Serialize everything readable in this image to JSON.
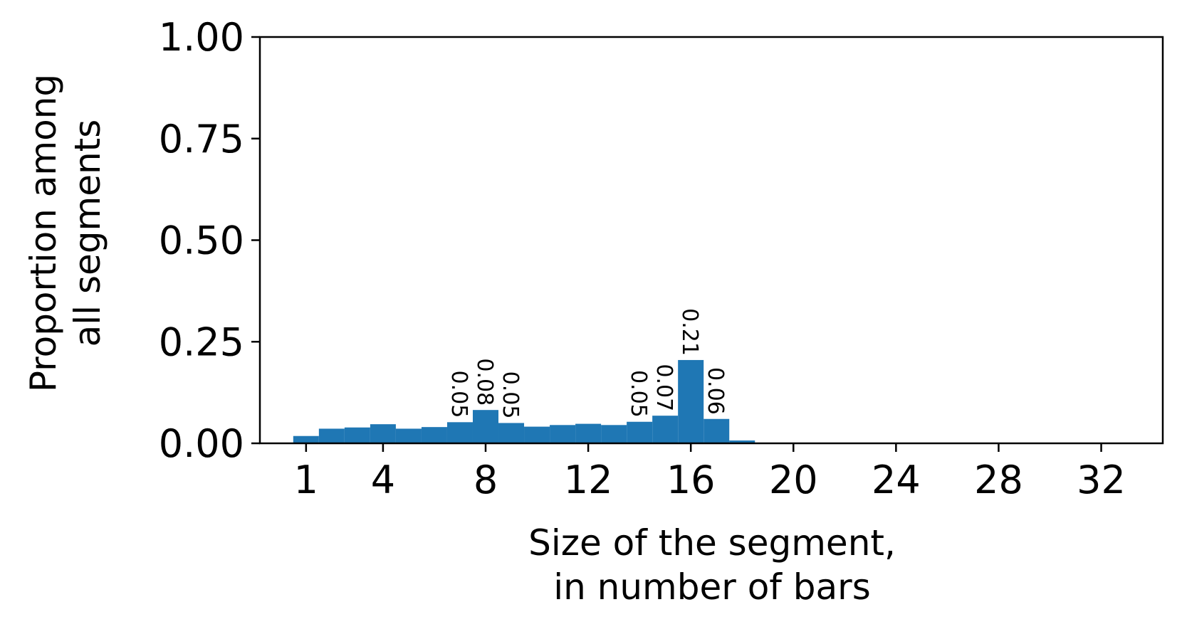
{
  "chart_data": {
    "type": "bar",
    "title": "",
    "xlabel_lines": [
      "Size of the segment,",
      "in number of bars"
    ],
    "ylabel_lines": [
      "Proportion among",
      "all segments"
    ],
    "x": [
      1,
      2,
      3,
      4,
      5,
      6,
      7,
      8,
      9,
      10,
      11,
      12,
      13,
      14,
      15,
      16,
      17,
      18,
      19,
      20,
      21,
      22,
      23,
      24,
      25,
      26,
      27,
      28,
      29,
      30,
      31,
      32
    ],
    "values": [
      0.018,
      0.036,
      0.039,
      0.047,
      0.036,
      0.04,
      0.052,
      0.082,
      0.05,
      0.041,
      0.045,
      0.048,
      0.045,
      0.053,
      0.068,
      0.205,
      0.06,
      0.007,
      0.001,
      0,
      0,
      0,
      0,
      0,
      0,
      0,
      0,
      0,
      0,
      0,
      0,
      0
    ],
    "bar_labels": [
      {
        "x": 7,
        "text": "0.05"
      },
      {
        "x": 8,
        "text": "0.08"
      },
      {
        "x": 9,
        "text": "0.05"
      },
      {
        "x": 14,
        "text": "0.05"
      },
      {
        "x": 15,
        "text": "0.07"
      },
      {
        "x": 16,
        "text": "0.21"
      },
      {
        "x": 17,
        "text": "0.06"
      }
    ],
    "xticks": [
      1,
      4,
      8,
      12,
      16,
      20,
      24,
      28,
      32
    ],
    "yticks": [
      0,
      0.25,
      0.5,
      0.75,
      1.0
    ],
    "ytick_labels": [
      "0.00",
      "0.25",
      "0.50",
      "0.75",
      "1.00"
    ],
    "xlim": [
      -0.8,
      34.4
    ],
    "ylim": [
      0,
      1.0
    ],
    "bar_color": "#1f77b4",
    "grid": false,
    "legend": "none"
  }
}
